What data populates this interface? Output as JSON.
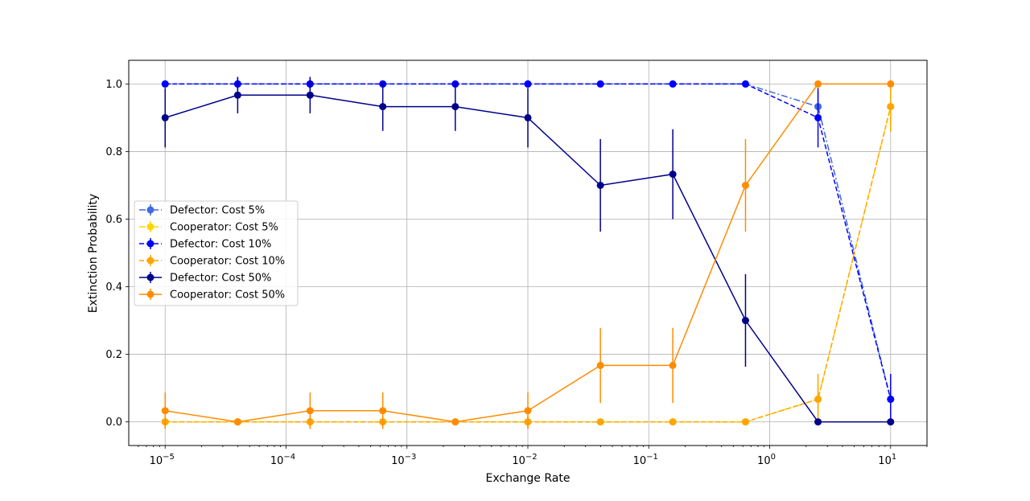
{
  "chart_data": {
    "type": "line",
    "title": "",
    "xlabel": "Exchange Rate",
    "ylabel": "Extinction Probability",
    "xscale": "log",
    "xlim": [
      5e-06,
      20
    ],
    "ylim": [
      -0.07,
      1.07
    ],
    "grid": true,
    "legend_position": "center-left",
    "x": [
      1e-05,
      3.98e-05,
      0.000158,
      0.000631,
      0.00251,
      0.01,
      0.0398,
      0.158,
      0.631,
      2.51,
      10
    ],
    "x_ticks": [
      {
        "value": 1e-05,
        "base": "10",
        "exp": "−5"
      },
      {
        "value": 0.0001,
        "base": "10",
        "exp": "−4"
      },
      {
        "value": 0.001,
        "base": "10",
        "exp": "−3"
      },
      {
        "value": 0.01,
        "base": "10",
        "exp": "−2"
      },
      {
        "value": 0.1,
        "base": "10",
        "exp": "−1"
      },
      {
        "value": 1,
        "base": "10",
        "exp": "0"
      },
      {
        "value": 10,
        "base": "10",
        "exp": "1"
      }
    ],
    "y_ticks": [
      {
        "value": 0.0,
        "label": "0.0"
      },
      {
        "value": 0.2,
        "label": "0.2"
      },
      {
        "value": 0.4,
        "label": "0.4"
      },
      {
        "value": 0.6,
        "label": "0.6"
      },
      {
        "value": 0.8,
        "label": "0.8"
      },
      {
        "value": 1.0,
        "label": "1.0"
      }
    ],
    "series": [
      {
        "name": "Defector: Cost 5%",
        "color": "#4169e1",
        "dash": "dashdot",
        "values": [
          1,
          1,
          1,
          1,
          1,
          1,
          1,
          1,
          1,
          0.933,
          0.067
        ],
        "errors": [
          0,
          0,
          0,
          0,
          0,
          0,
          0,
          0,
          0,
          0.046,
          0.046
        ]
      },
      {
        "name": "Cooperator: Cost 5%",
        "color": "#ffd700",
        "dash": "dashdot",
        "values": [
          0,
          0,
          0,
          0,
          0,
          0,
          0,
          0,
          0,
          0.067,
          0.933
        ],
        "errors": [
          0,
          0,
          0,
          0,
          0,
          0,
          0,
          0,
          0,
          0.046,
          0.046
        ]
      },
      {
        "name": "Defector: Cost 10%",
        "color": "#0000ff",
        "dash": "dashed",
        "values": [
          1,
          1,
          1,
          1,
          1,
          1,
          1,
          1,
          1,
          0.9,
          0.067
        ],
        "errors": [
          0,
          0.018,
          0.018,
          0,
          0,
          0,
          0,
          0,
          0,
          0.088,
          0.075
        ]
      },
      {
        "name": "Cooperator: Cost 10%",
        "color": "#ffa500",
        "dash": "dashed",
        "values": [
          0,
          0,
          0,
          0,
          0,
          0,
          0,
          0,
          0,
          0.067,
          0.933
        ],
        "errors": [
          0.018,
          0,
          0.018,
          0.018,
          0,
          0.018,
          0,
          0,
          0,
          0.075,
          0.075
        ]
      },
      {
        "name": "Defector: Cost 50%",
        "color": "#00008b",
        "dash": "solid",
        "values": [
          0.9,
          0.967,
          0.967,
          0.933,
          0.933,
          0.9,
          0.7,
          0.733,
          0.3,
          0,
          0
        ],
        "errors": [
          0.088,
          0.054,
          0.054,
          0.072,
          0.072,
          0.088,
          0.137,
          0.133,
          0.137,
          0,
          0
        ]
      },
      {
        "name": "Cooperator: Cost 50%",
        "color": "#ff8c00",
        "dash": "solid",
        "values": [
          0.033,
          0,
          0.033,
          0.033,
          0,
          0.033,
          0.167,
          0.167,
          0.7,
          1,
          1
        ],
        "errors": [
          0.054,
          0,
          0.054,
          0.054,
          0,
          0.054,
          0.111,
          0.111,
          0.137,
          0,
          0
        ]
      }
    ]
  }
}
